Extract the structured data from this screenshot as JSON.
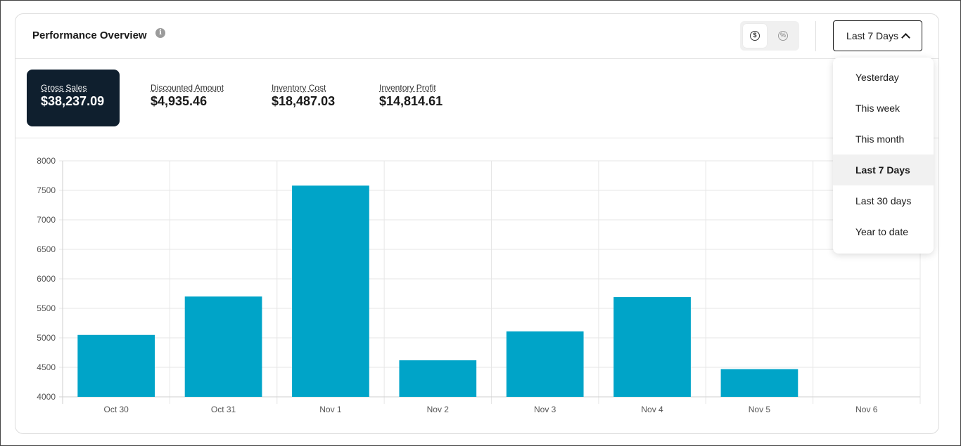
{
  "header": {
    "title": "Performance Overview",
    "info_icon": "i",
    "toggles": [
      {
        "icon": "dollar-circle-icon",
        "glyph": "$",
        "active": true
      },
      {
        "icon": "percent-circle-icon",
        "glyph": "%",
        "active": false
      }
    ],
    "range_label": "Last 7 Days"
  },
  "metrics": [
    {
      "label": "Gross Sales",
      "value": "$38,237.09",
      "active": true
    },
    {
      "label": "Discounted Amount",
      "value": "$4,935.46",
      "active": false
    },
    {
      "label": "Inventory Cost",
      "value": "$18,487.03",
      "active": false
    },
    {
      "label": "Inventory Profit",
      "value": "$14,814.61",
      "active": false
    }
  ],
  "dropdown": {
    "options": [
      "Yesterday",
      "This week",
      "This month",
      "Last 7 Days",
      "Last 30 days",
      "Year to date"
    ],
    "selected": "Last 7 Days"
  },
  "colors": {
    "bar": "#00a4c8",
    "active_metric_bg": "#0f1f2e",
    "grid": "#e6e6e6"
  },
  "chart_data": {
    "type": "bar",
    "categories": [
      "Oct 30",
      "Oct 31",
      "Nov 1",
      "Nov 2",
      "Nov 3",
      "Nov 4",
      "Nov 5",
      "Nov 6"
    ],
    "values": [
      5050,
      5700,
      7580,
      4620,
      5110,
      5690,
      4470,
      null
    ],
    "ylim": [
      4000,
      8000
    ],
    "yticks": [
      4000,
      4500,
      5000,
      5500,
      6000,
      6500,
      7000,
      7500,
      8000
    ],
    "grid": true
  }
}
